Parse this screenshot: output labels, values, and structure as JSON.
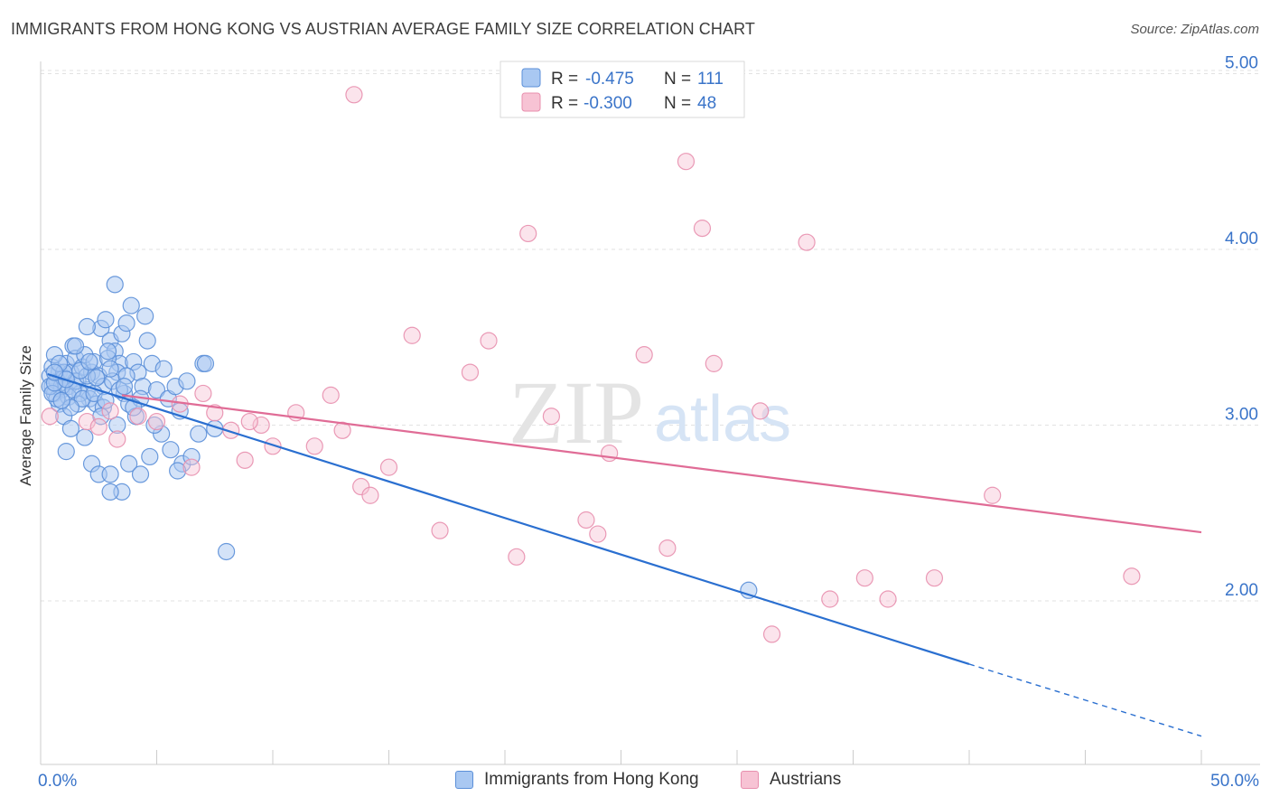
{
  "title": "IMMIGRANTS FROM HONG KONG VS AUSTRIAN AVERAGE FAMILY SIZE CORRELATION CHART",
  "source": "Source: ZipAtlas.com",
  "watermark": {
    "zip": "ZIP",
    "atlas": "atlas"
  },
  "colors": {
    "blue_fill": "#a9c8f2",
    "blue_stroke": "#5b8fd8",
    "blue_line": "#2a6fd0",
    "pink_fill": "#f7c3d4",
    "pink_stroke": "#e88fae",
    "pink_line": "#e06c96",
    "axis_text": "#3a74c9",
    "grid": "#e2e2e2"
  },
  "legend_top": [
    {
      "r_label": "R =",
      "r_value": "-0.475",
      "n_label": "N =",
      "n_value": "111",
      "color": "blue"
    },
    {
      "r_label": "R =",
      "r_value": "-0.300",
      "n_label": "N =",
      "n_value": "48",
      "color": "pink"
    }
  ],
  "legend_bottom": [
    "Immigrants from Hong Kong",
    "Austrians"
  ],
  "chart_data": {
    "type": "scatter",
    "ylabel": "Average Family Size",
    "xlabel": "",
    "x_tick_labels": [
      "0.0%",
      "50.0%"
    ],
    "y_tick_labels": [
      "2.00",
      "3.00",
      "4.00",
      "5.00"
    ],
    "xlim": [
      0,
      50
    ],
    "ylim": [
      1.1,
      5.1
    ],
    "grid": true,
    "series": [
      {
        "name": "Immigrants from Hong Kong",
        "color": "blue",
        "trend": {
          "x0": 0.3,
          "y0": 3.29,
          "x1": 40,
          "y1": 1.64,
          "dash_to_x": 50,
          "dash_to_y": 1.23
        },
        "points": [
          [
            0.4,
            3.28
          ],
          [
            0.5,
            3.22
          ],
          [
            0.6,
            3.18
          ],
          [
            0.7,
            3.25
          ],
          [
            0.8,
            3.3
          ],
          [
            0.5,
            3.33
          ],
          [
            0.9,
            3.2
          ],
          [
            1.0,
            3.27
          ],
          [
            1.1,
            3.35
          ],
          [
            0.6,
            3.4
          ],
          [
            1.2,
            3.22
          ],
          [
            1.3,
            3.3
          ],
          [
            1.4,
            3.45
          ],
          [
            1.5,
            3.38
          ],
          [
            0.8,
            3.12
          ],
          [
            1.0,
            3.05
          ],
          [
            1.6,
            3.25
          ],
          [
            1.8,
            3.33
          ],
          [
            2.0,
            3.2
          ],
          [
            2.1,
            3.15
          ],
          [
            2.2,
            3.3
          ],
          [
            1.7,
            3.18
          ],
          [
            1.9,
            3.4
          ],
          [
            2.3,
            3.36
          ],
          [
            2.5,
            3.28
          ],
          [
            2.7,
            3.22
          ],
          [
            2.4,
            3.12
          ],
          [
            1.2,
            3.16
          ],
          [
            0.9,
            3.22
          ],
          [
            1.5,
            3.25
          ],
          [
            2.6,
            3.55
          ],
          [
            2.8,
            3.6
          ],
          [
            3.0,
            3.48
          ],
          [
            3.2,
            3.42
          ],
          [
            2.0,
            3.56
          ],
          [
            3.4,
            3.35
          ],
          [
            3.5,
            3.52
          ],
          [
            3.3,
            3.3
          ],
          [
            3.7,
            3.58
          ],
          [
            3.6,
            3.18
          ],
          [
            2.9,
            3.38
          ],
          [
            3.1,
            3.25
          ],
          [
            3.8,
            3.12
          ],
          [
            4.0,
            3.36
          ],
          [
            4.2,
            3.3
          ],
          [
            4.4,
            3.22
          ],
          [
            4.6,
            3.48
          ],
          [
            3.9,
            3.68
          ],
          [
            4.8,
            3.35
          ],
          [
            5.0,
            3.2
          ],
          [
            5.3,
            3.32
          ],
          [
            5.5,
            3.15
          ],
          [
            5.8,
            3.22
          ],
          [
            6.0,
            3.08
          ],
          [
            6.3,
            3.25
          ],
          [
            4.5,
            3.62
          ],
          [
            3.2,
            3.8
          ],
          [
            2.7,
            3.1
          ],
          [
            1.9,
            2.93
          ],
          [
            1.3,
            2.98
          ],
          [
            1.1,
            2.85
          ],
          [
            2.2,
            2.78
          ],
          [
            2.5,
            2.72
          ],
          [
            3.0,
            2.72
          ],
          [
            3.5,
            2.62
          ],
          [
            3.8,
            2.78
          ],
          [
            4.3,
            2.72
          ],
          [
            4.7,
            2.82
          ],
          [
            5.2,
            2.95
          ],
          [
            5.6,
            2.86
          ],
          [
            6.1,
            2.78
          ],
          [
            5.9,
            2.74
          ],
          [
            6.5,
            2.82
          ],
          [
            6.8,
            2.95
          ],
          [
            7.0,
            3.35
          ],
          [
            2.0,
            3.28
          ],
          [
            0.7,
            3.15
          ],
          [
            1.6,
            3.12
          ],
          [
            2.6,
            3.05
          ],
          [
            3.3,
            3.0
          ],
          [
            4.1,
            3.05
          ],
          [
            4.9,
            3.0
          ],
          [
            0.4,
            3.22
          ],
          [
            0.5,
            3.18
          ],
          [
            0.6,
            3.24
          ],
          [
            1.0,
            3.3
          ],
          [
            1.4,
            3.2
          ],
          [
            1.8,
            3.15
          ],
          [
            2.3,
            3.18
          ],
          [
            2.8,
            3.14
          ],
          [
            3.4,
            3.2
          ],
          [
            3.7,
            3.28
          ],
          [
            4.3,
            3.15
          ],
          [
            1.1,
            3.26
          ],
          [
            0.8,
            3.35
          ],
          [
            1.7,
            3.31
          ],
          [
            2.4,
            3.27
          ],
          [
            3.0,
            3.32
          ],
          [
            3.6,
            3.22
          ],
          [
            1.3,
            3.1
          ],
          [
            2.9,
            3.42
          ],
          [
            0.6,
            3.3
          ],
          [
            1.5,
            3.45
          ],
          [
            4.0,
            3.1
          ],
          [
            0.9,
            3.14
          ],
          [
            2.1,
            3.36
          ],
          [
            7.1,
            3.35
          ],
          [
            7.5,
            2.98
          ],
          [
            8.0,
            2.28
          ],
          [
            3.0,
            2.62
          ],
          [
            30.5,
            2.06
          ]
        ]
      },
      {
        "name": "Austrians",
        "color": "pink",
        "trend": {
          "x0": 3.5,
          "y0": 3.17,
          "x1": 50,
          "y1": 2.39
        },
        "points": [
          [
            0.4,
            3.05
          ],
          [
            2.0,
            3.02
          ],
          [
            2.5,
            2.99
          ],
          [
            3.0,
            3.08
          ],
          [
            3.3,
            2.92
          ],
          [
            4.2,
            3.05
          ],
          [
            5.0,
            3.02
          ],
          [
            6.0,
            3.12
          ],
          [
            6.5,
            2.76
          ],
          [
            7.0,
            3.18
          ],
          [
            7.5,
            3.07
          ],
          [
            8.2,
            2.97
          ],
          [
            8.8,
            2.8
          ],
          [
            9.5,
            3.0
          ],
          [
            10.0,
            2.88
          ],
          [
            11.0,
            3.07
          ],
          [
            11.8,
            2.88
          ],
          [
            12.5,
            3.17
          ],
          [
            13.0,
            2.97
          ],
          [
            13.8,
            2.65
          ],
          [
            14.2,
            2.6
          ],
          [
            15.0,
            2.76
          ],
          [
            16.0,
            3.51
          ],
          [
            17.2,
            2.4
          ],
          [
            18.5,
            3.3
          ],
          [
            19.3,
            3.48
          ],
          [
            20.5,
            2.25
          ],
          [
            21.0,
            4.09
          ],
          [
            22.0,
            3.05
          ],
          [
            23.5,
            2.46
          ],
          [
            24.0,
            2.38
          ],
          [
            24.5,
            2.84
          ],
          [
            26.0,
            3.4
          ],
          [
            27.0,
            2.3
          ],
          [
            27.8,
            4.5
          ],
          [
            28.5,
            4.12
          ],
          [
            31.0,
            3.08
          ],
          [
            31.5,
            1.81
          ],
          [
            33.0,
            4.04
          ],
          [
            34.0,
            2.01
          ],
          [
            35.5,
            2.13
          ],
          [
            36.5,
            2.01
          ],
          [
            38.5,
            2.13
          ],
          [
            41.0,
            2.6
          ],
          [
            47.0,
            2.14
          ],
          [
            13.5,
            4.88
          ],
          [
            29.0,
            3.35
          ],
          [
            9.0,
            3.02
          ]
        ]
      }
    ]
  }
}
